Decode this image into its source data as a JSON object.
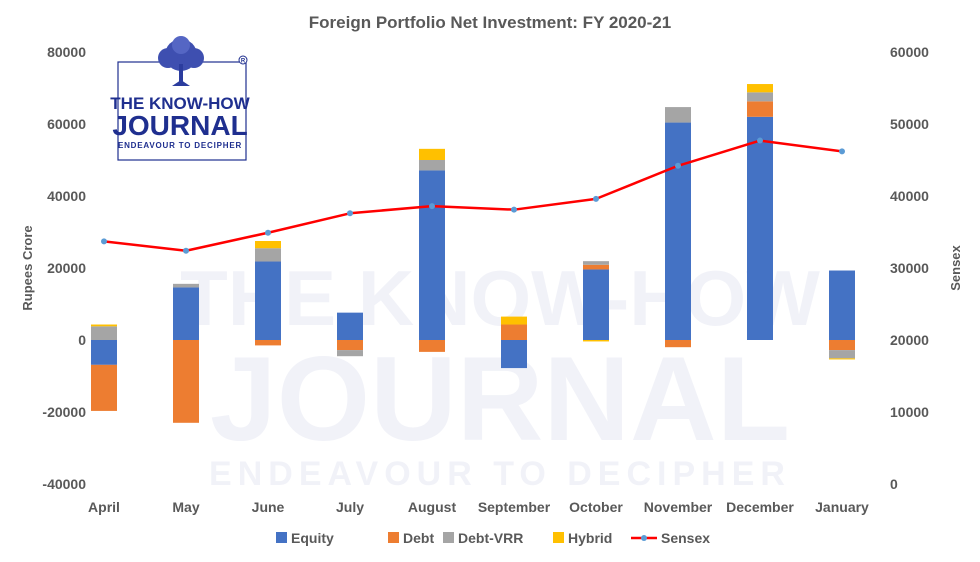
{
  "chart_data": {
    "type": "bar",
    "title": "Foreign Portfolio Net Investment: FY 2020-21",
    "categories": [
      "April",
      "May",
      "June",
      "July",
      "August",
      "September",
      "October",
      "November",
      "December",
      "January"
    ],
    "series": [
      {
        "name": "Equity",
        "type": "stacked-bar",
        "axis": "left",
        "color": "#4472c4",
        "values": [
          -6900,
          14600,
          21800,
          7600,
          47100,
          -7800,
          19600,
          60400,
          62000,
          19300
        ]
      },
      {
        "name": "Debt",
        "type": "stacked-bar",
        "axis": "left",
        "color": "#ed7d31",
        "values": [
          -12800,
          -23000,
          -1500,
          -2800,
          -3300,
          4300,
          1300,
          -2000,
          4300,
          -2800
        ]
      },
      {
        "name": "Debt-VRR",
        "type": "stacked-bar",
        "axis": "left",
        "color": "#a5a5a5",
        "values": [
          3800,
          1000,
          3700,
          -1700,
          2900,
          0,
          1000,
          4300,
          2500,
          -2300
        ]
      },
      {
        "name": "Hybrid",
        "type": "stacked-bar",
        "axis": "left",
        "color": "#ffc000",
        "values": [
          500,
          0,
          2000,
          0,
          3100,
          2200,
          -400,
          0,
          2300,
          -300
        ]
      },
      {
        "name": "Sensex",
        "type": "line",
        "axis": "right",
        "color": "#ff0000",
        "values": [
          33700,
          32400,
          34900,
          37600,
          38600,
          38100,
          39600,
          44200,
          47700,
          46200
        ]
      }
    ],
    "ylabel": "Rupees Crore",
    "y2label": "Sensex",
    "ylim": [
      -40000,
      80000
    ],
    "y2lim": [
      0,
      60000
    ],
    "yticks": [
      "80000",
      "60000",
      "40000",
      "20000",
      "0",
      "-20000",
      "-40000"
    ],
    "y2ticks": [
      "60000",
      "50000",
      "40000",
      "30000",
      "20000",
      "10000",
      "0"
    ],
    "grid": false,
    "legend": "bottom"
  },
  "logo": {
    "line1": "THE KNOW-HOW",
    "line2": "JOURNAL",
    "line3": "ENDEAVOUR TO DECIPHER"
  },
  "watermark": {
    "line1": "THE KNOW-HOW",
    "line2": "JOURNAL",
    "line3": "ENDEAVOUR TO DECIPHER"
  }
}
